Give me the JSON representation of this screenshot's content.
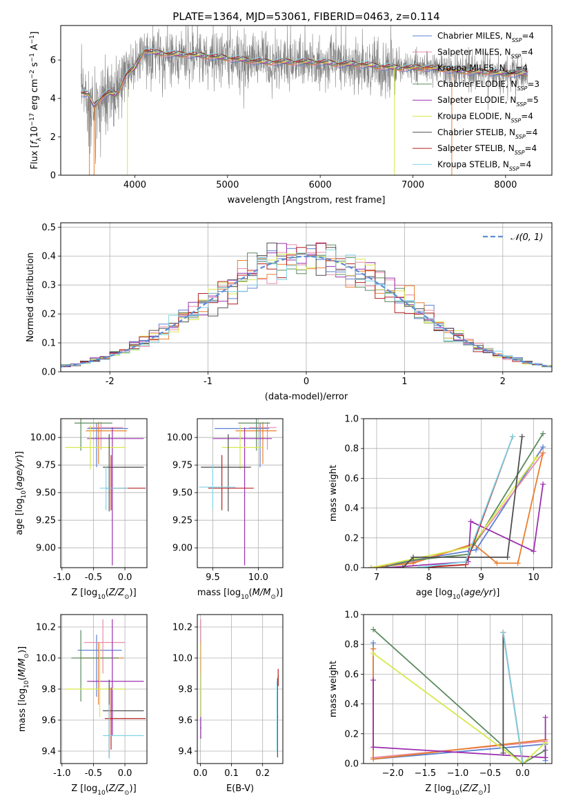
{
  "figure": {
    "title": "PLATE=1364, MJD=53061, FIBERID=0463, z=0.114"
  },
  "series_styles": [
    {
      "name": "Chabrier MILES",
      "nssp": "4",
      "color": "#5b7fd1"
    },
    {
      "name": "Salpeter MILES",
      "nssp": "4",
      "color": "#e88aa6"
    },
    {
      "name": "Kroupa MILES",
      "nssp": "4",
      "color": "#e97d2c"
    },
    {
      "name": "Chabrier ELODIE",
      "nssp": "3",
      "color": "#5a8a5e"
    },
    {
      "name": "Salpeter ELODIE",
      "nssp": "5",
      "color": "#9b2fae"
    },
    {
      "name": "Kroupa ELODIE",
      "nssp": "4",
      "color": "#d6e84a"
    },
    {
      "name": "Chabrier STELIB",
      "nssp": "4",
      "color": "#4d4d4d"
    },
    {
      "name": "Salpeter STELIB",
      "nssp": "4",
      "color": "#b41f1f"
    },
    {
      "name": "Kroupa STELIB",
      "nssp": "4",
      "color": "#7fd3e6"
    }
  ],
  "chart_data": [
    {
      "id": "spectrum",
      "type": "line",
      "xlabel": "wavelength [Angstrom, rest frame]",
      "ylabel": "Flux [f_λ 10^-17 erg cm^-2 s^-1 A^-1]",
      "xlim": [
        3200,
        8500
      ],
      "ylim": [
        0,
        7.8
      ],
      "xticks": [
        4000,
        5000,
        6000,
        7000,
        8000
      ],
      "yticks": [
        0,
        2,
        4,
        6
      ],
      "legend": "top-right",
      "data_anchor": {
        "x": [
          3420,
          3500,
          3560,
          3650,
          3720,
          3800,
          3900,
          4000,
          4100,
          4200,
          4400,
          4600,
          4800,
          5000,
          5200,
          5400,
          5600,
          5800,
          6000,
          6200,
          6400,
          6600,
          6800,
          7000,
          7200,
          7400,
          7600,
          7800,
          8000,
          8200
        ],
        "y": [
          4.3,
          4.2,
          3.6,
          4.1,
          4.3,
          4.2,
          5.2,
          5.6,
          6.5,
          6.4,
          6.3,
          6.3,
          6.2,
          6.1,
          6.0,
          5.9,
          5.9,
          5.9,
          5.9,
          5.8,
          5.8,
          5.7,
          5.6,
          5.6,
          5.6,
          5.5,
          5.4,
          5.4,
          5.3,
          5.3
        ]
      }
    },
    {
      "id": "residual-histogram",
      "type": "line",
      "xlabel": "(data-model)/error",
      "ylabel": "Normed distribution",
      "xlim": [
        -2.5,
        2.5
      ],
      "ylim": [
        0,
        0.515
      ],
      "xticks": [
        -2,
        -1,
        0,
        1,
        2
      ],
      "yticks": [
        0.0,
        0.1,
        0.2,
        0.3,
        0.4,
        0.5
      ],
      "grid": true,
      "legend": "top-right",
      "reference_label": "𝒩(0, 1)",
      "bin_width": 0.1
    },
    {
      "id": "age-vs-Z",
      "type": "scatter",
      "xlabel": "Z [log10(Z/Z⊙)]",
      "ylabel": "age [log10(age/yr)]",
      "xlim": [
        -1.02,
        0.35
      ],
      "ylim": [
        8.82,
        10.17
      ],
      "xticks": [
        -1.0,
        -0.5,
        0.0
      ],
      "yticks": [
        9.0,
        9.25,
        9.5,
        9.75,
        10.0
      ],
      "grid": true
    },
    {
      "id": "age-vs-mass",
      "type": "scatter",
      "xlabel": "mass [log10(M/M⊙)]",
      "ylabel": "",
      "xlim": [
        9.33,
        10.27
      ],
      "ylim": [
        8.82,
        10.17
      ],
      "xticks": [
        9.5,
        10.0
      ],
      "yticks": [
        9.0,
        9.25,
        9.5,
        9.75,
        10.0
      ],
      "grid": true
    },
    {
      "id": "massweight-vs-age",
      "type": "line",
      "xlabel": "age [log10(age/yr)]",
      "ylabel": "mass weight",
      "xlim": [
        6.75,
        10.35
      ],
      "ylim": [
        0,
        1
      ],
      "xticks": [
        7,
        8,
        9,
        10
      ],
      "yticks": [
        0.0,
        0.2,
        0.4,
        0.6,
        0.8,
        1.0
      ],
      "grid": true,
      "series": [
        {
          "name": "Chabrier MILES",
          "x": [
            6.9,
            7.7,
            8.9,
            10.18
          ],
          "y": [
            0.0,
            0.05,
            0.12,
            0.81
          ]
        },
        {
          "name": "Salpeter MILES",
          "x": [
            6.9,
            7.7,
            8.85,
            10.18
          ],
          "y": [
            0.0,
            0.04,
            0.15,
            0.77
          ]
        },
        {
          "name": "Kroupa MILES",
          "x": [
            6.9,
            7.7,
            8.85,
            9.3,
            9.7,
            10.18
          ],
          "y": [
            0.0,
            0.03,
            0.16,
            0.03,
            0.03,
            0.77
          ]
        },
        {
          "name": "Chabrier ELODIE",
          "x": [
            7.1,
            7.7,
            8.75,
            10.18
          ],
          "y": [
            0.0,
            0.05,
            0.09,
            0.9
          ]
        },
        {
          "name": "Salpeter ELODIE",
          "x": [
            7.2,
            8.75,
            8.8,
            10.0,
            10.18
          ],
          "y": [
            0.0,
            0.04,
            0.31,
            0.11,
            0.56
          ]
        },
        {
          "name": "Kroupa ELODIE",
          "x": [
            6.9,
            8.8,
            10.05
          ],
          "y": [
            0.0,
            0.14,
            0.74
          ]
        },
        {
          "name": "Chabrier STELIB",
          "x": [
            7.5,
            7.7,
            9.5,
            9.78
          ],
          "y": [
            0.0,
            0.07,
            0.07,
            0.88
          ]
        },
        {
          "name": "Salpeter STELIB",
          "x": [
            7.8,
            8.7,
            9.6
          ],
          "y": [
            0.0,
            0.02,
            0.88
          ]
        },
        {
          "name": "Kroupa STELIB",
          "x": [
            7.8,
            8.7,
            9.6
          ],
          "y": [
            0.0,
            0.04,
            0.88
          ]
        }
      ]
    },
    {
      "id": "mass-vs-Z",
      "type": "scatter",
      "xlabel": "Z [log10(Z/Z⊙)]",
      "ylabel": "mass [log10(M/M⊙)]",
      "xlim": [
        -1.02,
        0.35
      ],
      "ylim": [
        9.32,
        10.28
      ],
      "xticks": [
        -1.0,
        -0.5,
        0.0
      ],
      "yticks": [
        9.4,
        9.6,
        9.8,
        10.0,
        10.2
      ],
      "grid": true
    },
    {
      "id": "mass-vs-EBV",
      "type": "scatter",
      "xlabel": "E(B-V)",
      "ylabel": "",
      "xlim": [
        -0.01,
        0.265
      ],
      "ylim": [
        9.32,
        10.28
      ],
      "xticks": [
        0.0,
        0.1,
        0.2
      ],
      "yticks": [
        9.4,
        9.6,
        9.8,
        10.0,
        10.2
      ],
      "grid": true
    },
    {
      "id": "massweight-vs-Z",
      "type": "line",
      "xlabel": "Z [log10(Z/Z⊙)]",
      "ylabel": "mass weight",
      "xlim": [
        -2.45,
        0.45
      ],
      "ylim": [
        0,
        1
      ],
      "xticks": [
        -2.0,
        -1.5,
        -1.0,
        -0.5,
        0.0
      ],
      "yticks": [
        0.0,
        0.2,
        0.4,
        0.6,
        0.8,
        1.0
      ],
      "grid": true,
      "series": [
        {
          "name": "Chabrier MILES",
          "x": [
            -2.3,
            -2.3,
            0.35,
            0.35
          ],
          "y": [
            0.81,
            0.03,
            0.13,
            0.02
          ]
        },
        {
          "name": "Salpeter MILES",
          "x": [
            -2.3,
            -2.3,
            0.35
          ],
          "y": [
            0.77,
            0.04,
            0.15
          ]
        },
        {
          "name": "Kroupa MILES",
          "x": [
            -2.3,
            -2.3,
            0.35
          ],
          "y": [
            0.77,
            0.03,
            0.16
          ]
        },
        {
          "name": "Chabrier ELODIE",
          "x": [
            -2.3,
            0.0,
            0.35
          ],
          "y": [
            0.9,
            0.0,
            0.09
          ]
        },
        {
          "name": "Salpeter ELODIE",
          "x": [
            -2.3,
            -2.3,
            0.35,
            0.35
          ],
          "y": [
            0.56,
            0.11,
            0.04,
            0.31
          ]
        },
        {
          "name": "Kroupa ELODIE",
          "x": [
            -2.3,
            0.0,
            0.35
          ],
          "y": [
            0.74,
            0.0,
            0.14
          ]
        },
        {
          "name": "Chabrier STELIB",
          "x": [
            -0.3,
            -0.3,
            0.0
          ],
          "y": [
            0.07,
            0.88,
            0.0
          ]
        },
        {
          "name": "Salpeter STELIB",
          "x": [
            -0.3,
            0.0
          ],
          "y": [
            0.88,
            0.0
          ]
        },
        {
          "name": "Kroupa STELIB",
          "x": [
            -0.3,
            0.0
          ],
          "y": [
            0.88,
            0.0
          ]
        }
      ]
    }
  ]
}
